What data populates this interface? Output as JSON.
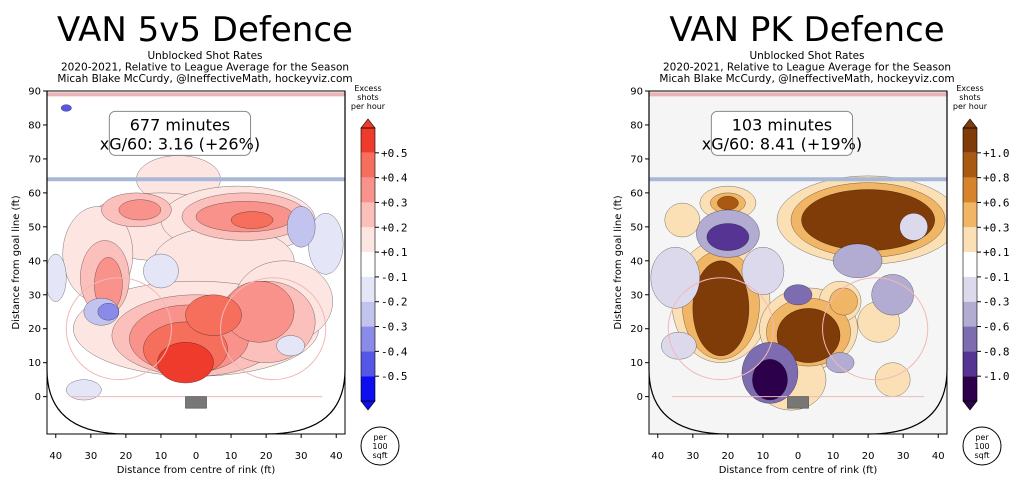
{
  "chart_data": [
    {
      "type": "heatmap",
      "title": "VAN 5v5 Defence",
      "subtitle": [
        "Unblocked Shot Rates",
        "2020-2021, Relative to League Average for the Season",
        "Micah Blake McCurdy, @IneffectiveMath, hockeyviz.com"
      ],
      "xlabel": "Distance from centre of rink (ft)",
      "ylabel": "Distance from goal line (ft)",
      "x_ticks": [
        "40",
        "30",
        "20",
        "10",
        "0",
        "10",
        "20",
        "30",
        "40"
      ],
      "y_ticks": [
        "0",
        "10",
        "20",
        "30",
        "40",
        "50",
        "60",
        "70",
        "80",
        "90"
      ],
      "xlim": [
        -42.5,
        42.5
      ],
      "ylim": [
        -11,
        90
      ],
      "annotation": [
        "677 minutes",
        "xG/60: 3.16 (+26%)"
      ],
      "colorbar": {
        "title": [
          "Excess",
          "shots",
          "per hour"
        ],
        "ticks": [
          "+0.5",
          "+0.4",
          "+0.3",
          "+0.2",
          "+0.1",
          "-0.1",
          "-0.2",
          "-0.3",
          "-0.4",
          "-0.5"
        ],
        "colors": [
          "#ef3b2c",
          "#f56f5c",
          "#f8928a",
          "#fbc0bb",
          "#fde5e2",
          "#ffffff",
          "#e5e5f8",
          "#c3c3ef",
          "#8a8ae8",
          "#5656e6",
          "#0d0df0"
        ],
        "unit_label": [
          "per",
          "100",
          "sqft"
        ]
      },
      "blobs_description": "positive: slot/crease, high slot, left circle; negative: right-point area, left faceoff dot"
    },
    {
      "type": "heatmap",
      "title": "VAN PK Defence",
      "subtitle": [
        "Unblocked Shot Rates",
        "2020-2021, Relative to League Average for the Season",
        "Micah Blake McCurdy, @IneffectiveMath, hockeyviz.com"
      ],
      "xlabel": "Distance from centre of rink (ft)",
      "ylabel": "Distance from goal line (ft)",
      "x_ticks": [
        "40",
        "30",
        "20",
        "10",
        "0",
        "10",
        "20",
        "30",
        "40"
      ],
      "y_ticks": [
        "0",
        "10",
        "20",
        "30",
        "40",
        "50",
        "60",
        "70",
        "80",
        "90"
      ],
      "xlim": [
        -42.5,
        42.5
      ],
      "ylim": [
        -11,
        90
      ],
      "annotation": [
        "103 minutes",
        "xG/60: 8.41 (+19%)"
      ],
      "colorbar": {
        "title": [
          "Excess",
          "shots",
          "per hour"
        ],
        "ticks": [
          "+1.0",
          "+0.8",
          "+0.6",
          "+0.3",
          "+0.1",
          "-0.1",
          "-0.3",
          "-0.6",
          "-0.8",
          "-1.0"
        ],
        "colors": [
          "#7f3b08",
          "#a95a12",
          "#d6832c",
          "#f1b566",
          "#fbdfb5",
          "#ffffff",
          "#ddd9ec",
          "#b2abd2",
          "#7d6db0",
          "#553493",
          "#2d004b"
        ],
        "unit_label": [
          "per",
          "100",
          "sqft"
        ]
      }
    }
  ]
}
